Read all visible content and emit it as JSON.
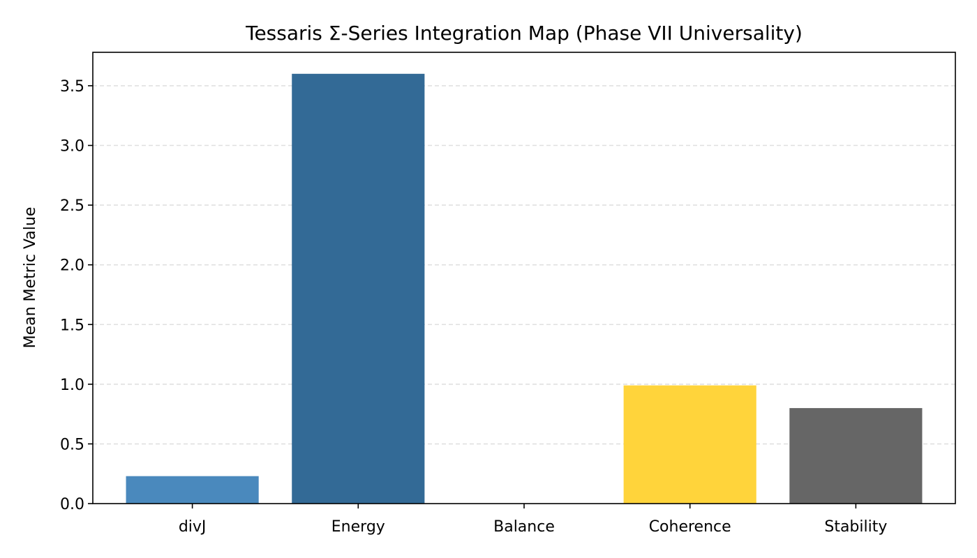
{
  "chart_data": {
    "type": "bar",
    "title": "Tessaris Σ-Series Integration Map (Phase VII Universality)",
    "xlabel": "",
    "ylabel": "Mean Metric Value",
    "categories": [
      "divJ",
      "Energy",
      "Balance",
      "Coherence",
      "Stability"
    ],
    "values": [
      0.23,
      3.6,
      0.0,
      0.99,
      0.8
    ],
    "colors": [
      "#4a89bd",
      "#336a96",
      "#ffffff",
      "#ffd43b",
      "#666666"
    ],
    "ylim": [
      0,
      3.78
    ],
    "yticks": [
      0.0,
      0.5,
      1.0,
      1.5,
      2.0,
      2.5,
      3.0,
      3.5
    ],
    "ytick_labels": [
      "0.0",
      "0.5",
      "1.0",
      "1.5",
      "2.0",
      "2.5",
      "3.0",
      "3.5"
    ],
    "grid": "y-dashed",
    "legend": "none"
  }
}
